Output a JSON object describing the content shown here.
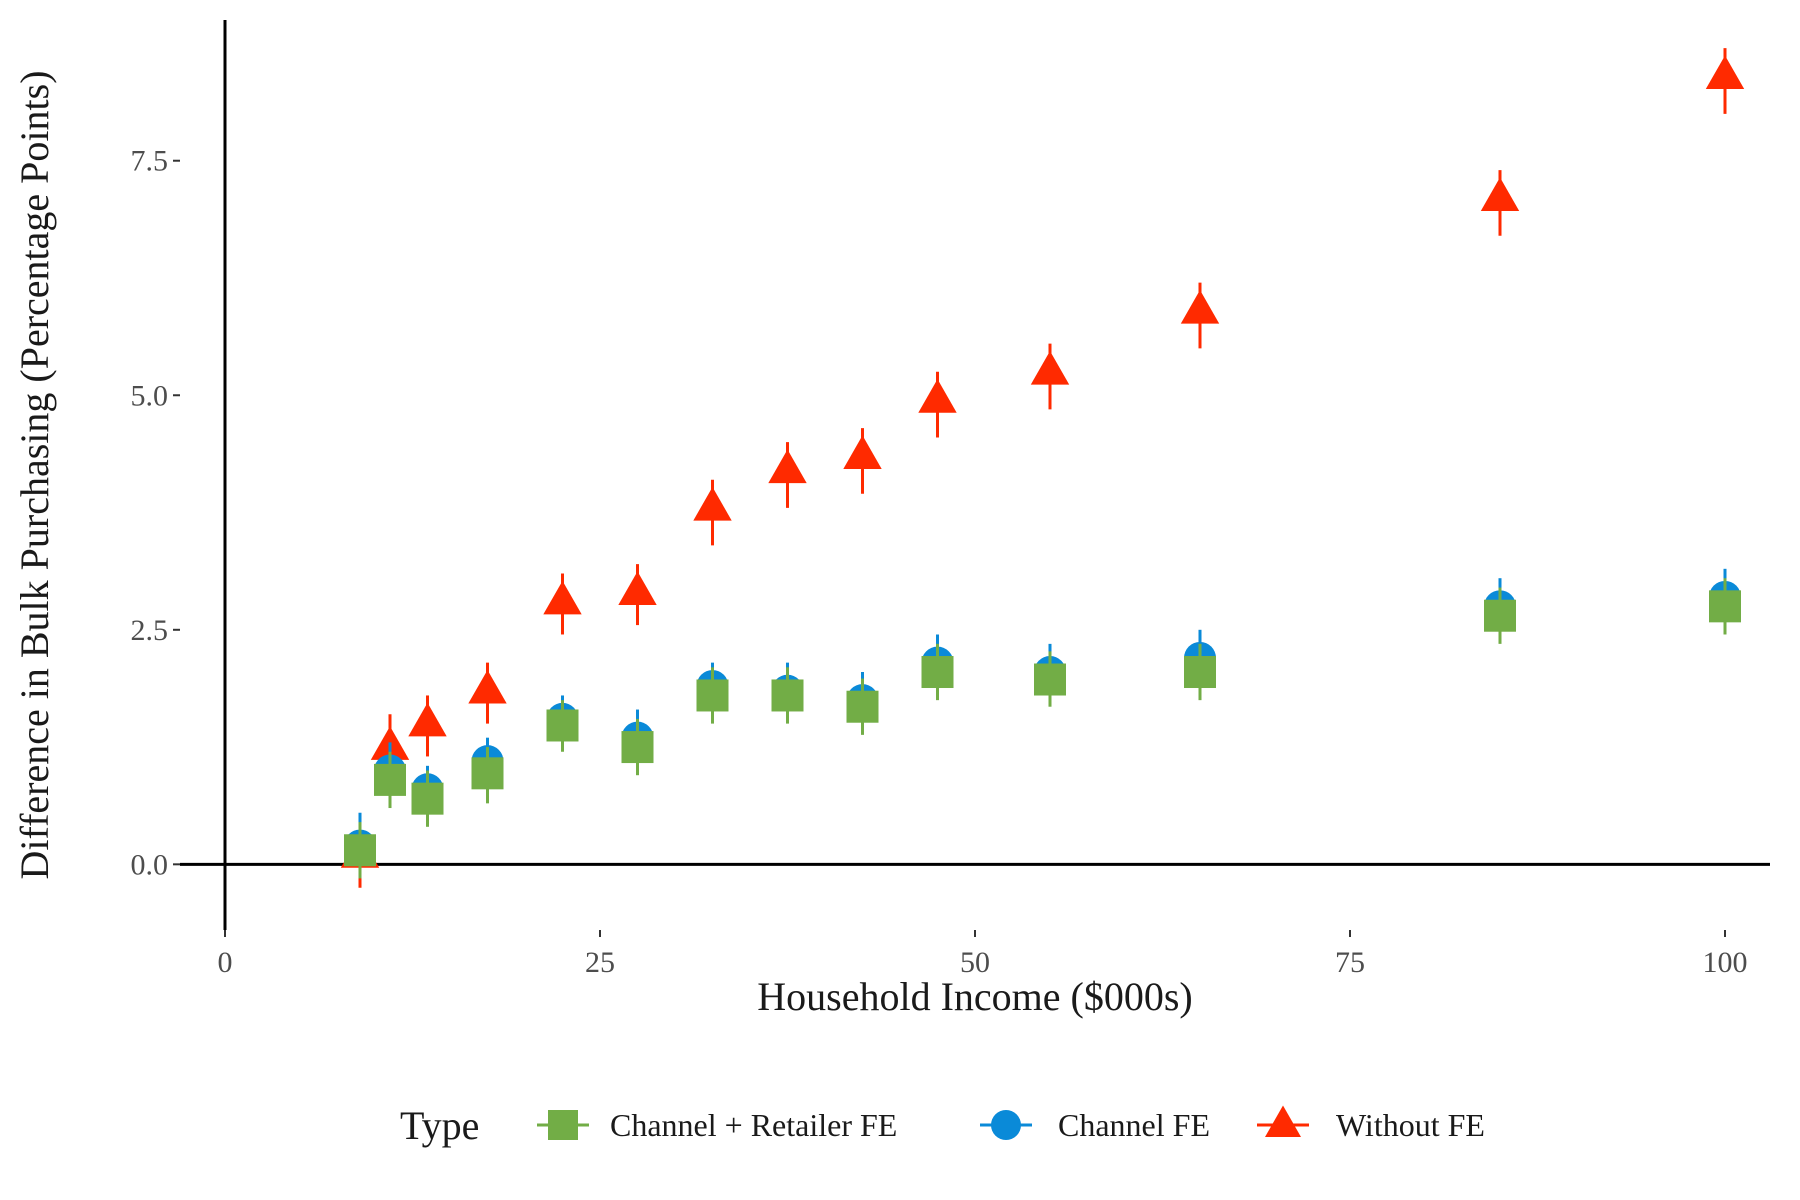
{
  "chart_data": {
    "type": "scatter",
    "title": "",
    "xlabel": "Household Income ($000s)",
    "ylabel": "Difference in Bulk Purchasing (Percentage Points)",
    "xlim": [
      -3,
      103
    ],
    "ylim": [
      -0.7,
      9.0
    ],
    "x_ticks": [
      0,
      25,
      50,
      75,
      100
    ],
    "x_tick_labels": [
      "0",
      "25",
      "50",
      "75",
      "100"
    ],
    "y_ticks": [
      0.0,
      2.5,
      5.0,
      7.5
    ],
    "y_tick_labels": [
      "0.0",
      "2.5",
      "5.0",
      "7.5"
    ],
    "reference_lines": {
      "x": 0,
      "y": 0
    },
    "grid": false,
    "legend": {
      "title": "Type",
      "position": "bottom"
    },
    "series": [
      {
        "name": "Without FE",
        "marker": "triangle",
        "color": "#ff2a00",
        "points": [
          {
            "x": 9,
            "y": 0.1,
            "lo": -0.25,
            "hi": 0.45
          },
          {
            "x": 11,
            "y": 1.25,
            "lo": 0.9,
            "hi": 1.6
          },
          {
            "x": 13.5,
            "y": 1.5,
            "lo": 1.15,
            "hi": 1.8
          },
          {
            "x": 17.5,
            "y": 1.85,
            "lo": 1.5,
            "hi": 2.15
          },
          {
            "x": 22.5,
            "y": 2.8,
            "lo": 2.45,
            "hi": 3.1
          },
          {
            "x": 27.5,
            "y": 2.9,
            "lo": 2.55,
            "hi": 3.2
          },
          {
            "x": 32.5,
            "y": 3.8,
            "lo": 3.4,
            "hi": 4.1
          },
          {
            "x": 37.5,
            "y": 4.2,
            "lo": 3.8,
            "hi": 4.5
          },
          {
            "x": 42.5,
            "y": 4.35,
            "lo": 3.95,
            "hi": 4.65
          },
          {
            "x": 47.5,
            "y": 4.95,
            "lo": 4.55,
            "hi": 5.25
          },
          {
            "x": 55,
            "y": 5.25,
            "lo": 4.85,
            "hi": 5.55
          },
          {
            "x": 65,
            "y": 5.9,
            "lo": 5.5,
            "hi": 6.2
          },
          {
            "x": 85,
            "y": 7.1,
            "lo": 6.7,
            "hi": 7.4
          },
          {
            "x": 100,
            "y": 8.4,
            "lo": 8.0,
            "hi": 8.7
          }
        ]
      },
      {
        "name": "Channel FE",
        "marker": "circle",
        "color": "#0a8ad8",
        "points": [
          {
            "x": 9,
            "y": 0.2,
            "lo": -0.1,
            "hi": 0.55
          },
          {
            "x": 11,
            "y": 1.0,
            "lo": 0.7,
            "hi": 1.3
          },
          {
            "x": 13.5,
            "y": 0.8,
            "lo": 0.5,
            "hi": 1.05
          },
          {
            "x": 17.5,
            "y": 1.1,
            "lo": 0.8,
            "hi": 1.35
          },
          {
            "x": 22.5,
            "y": 1.55,
            "lo": 1.25,
            "hi": 1.8
          },
          {
            "x": 27.5,
            "y": 1.35,
            "lo": 1.05,
            "hi": 1.65
          },
          {
            "x": 32.5,
            "y": 1.9,
            "lo": 1.6,
            "hi": 2.15
          },
          {
            "x": 37.5,
            "y": 1.85,
            "lo": 1.55,
            "hi": 2.15
          },
          {
            "x": 42.5,
            "y": 1.75,
            "lo": 1.45,
            "hi": 2.05
          },
          {
            "x": 47.5,
            "y": 2.15,
            "lo": 1.8,
            "hi": 2.45
          },
          {
            "x": 55,
            "y": 2.05,
            "lo": 1.75,
            "hi": 2.35
          },
          {
            "x": 65,
            "y": 2.2,
            "lo": 1.85,
            "hi": 2.5
          },
          {
            "x": 85,
            "y": 2.75,
            "lo": 2.45,
            "hi": 3.05
          },
          {
            "x": 100,
            "y": 2.85,
            "lo": 2.55,
            "hi": 3.15
          }
        ]
      },
      {
        "name": "Channel + Retailer FE",
        "marker": "square",
        "color": "#72ad46",
        "points": [
          {
            "x": 9,
            "y": 0.15,
            "lo": -0.15,
            "hi": 0.45
          },
          {
            "x": 11,
            "y": 0.9,
            "lo": 0.6,
            "hi": 1.2
          },
          {
            "x": 13.5,
            "y": 0.7,
            "lo": 0.4,
            "hi": 1.0
          },
          {
            "x": 17.5,
            "y": 0.97,
            "lo": 0.65,
            "hi": 1.25
          },
          {
            "x": 22.5,
            "y": 1.48,
            "lo": 1.2,
            "hi": 1.75
          },
          {
            "x": 27.5,
            "y": 1.25,
            "lo": 0.95,
            "hi": 1.55
          },
          {
            "x": 32.5,
            "y": 1.8,
            "lo": 1.5,
            "hi": 2.1
          },
          {
            "x": 37.5,
            "y": 1.8,
            "lo": 1.5,
            "hi": 2.1
          },
          {
            "x": 42.5,
            "y": 1.68,
            "lo": 1.38,
            "hi": 1.98
          },
          {
            "x": 47.5,
            "y": 2.05,
            "lo": 1.75,
            "hi": 2.35
          },
          {
            "x": 55,
            "y": 1.97,
            "lo": 1.68,
            "hi": 2.27
          },
          {
            "x": 65,
            "y": 2.05,
            "lo": 1.75,
            "hi": 2.35
          },
          {
            "x": 85,
            "y": 2.65,
            "lo": 2.35,
            "hi": 2.95
          },
          {
            "x": 100,
            "y": 2.75,
            "lo": 2.45,
            "hi": 3.05
          }
        ]
      }
    ],
    "legend_order": [
      "Channel + Retailer FE",
      "Channel FE",
      "Without FE"
    ]
  }
}
